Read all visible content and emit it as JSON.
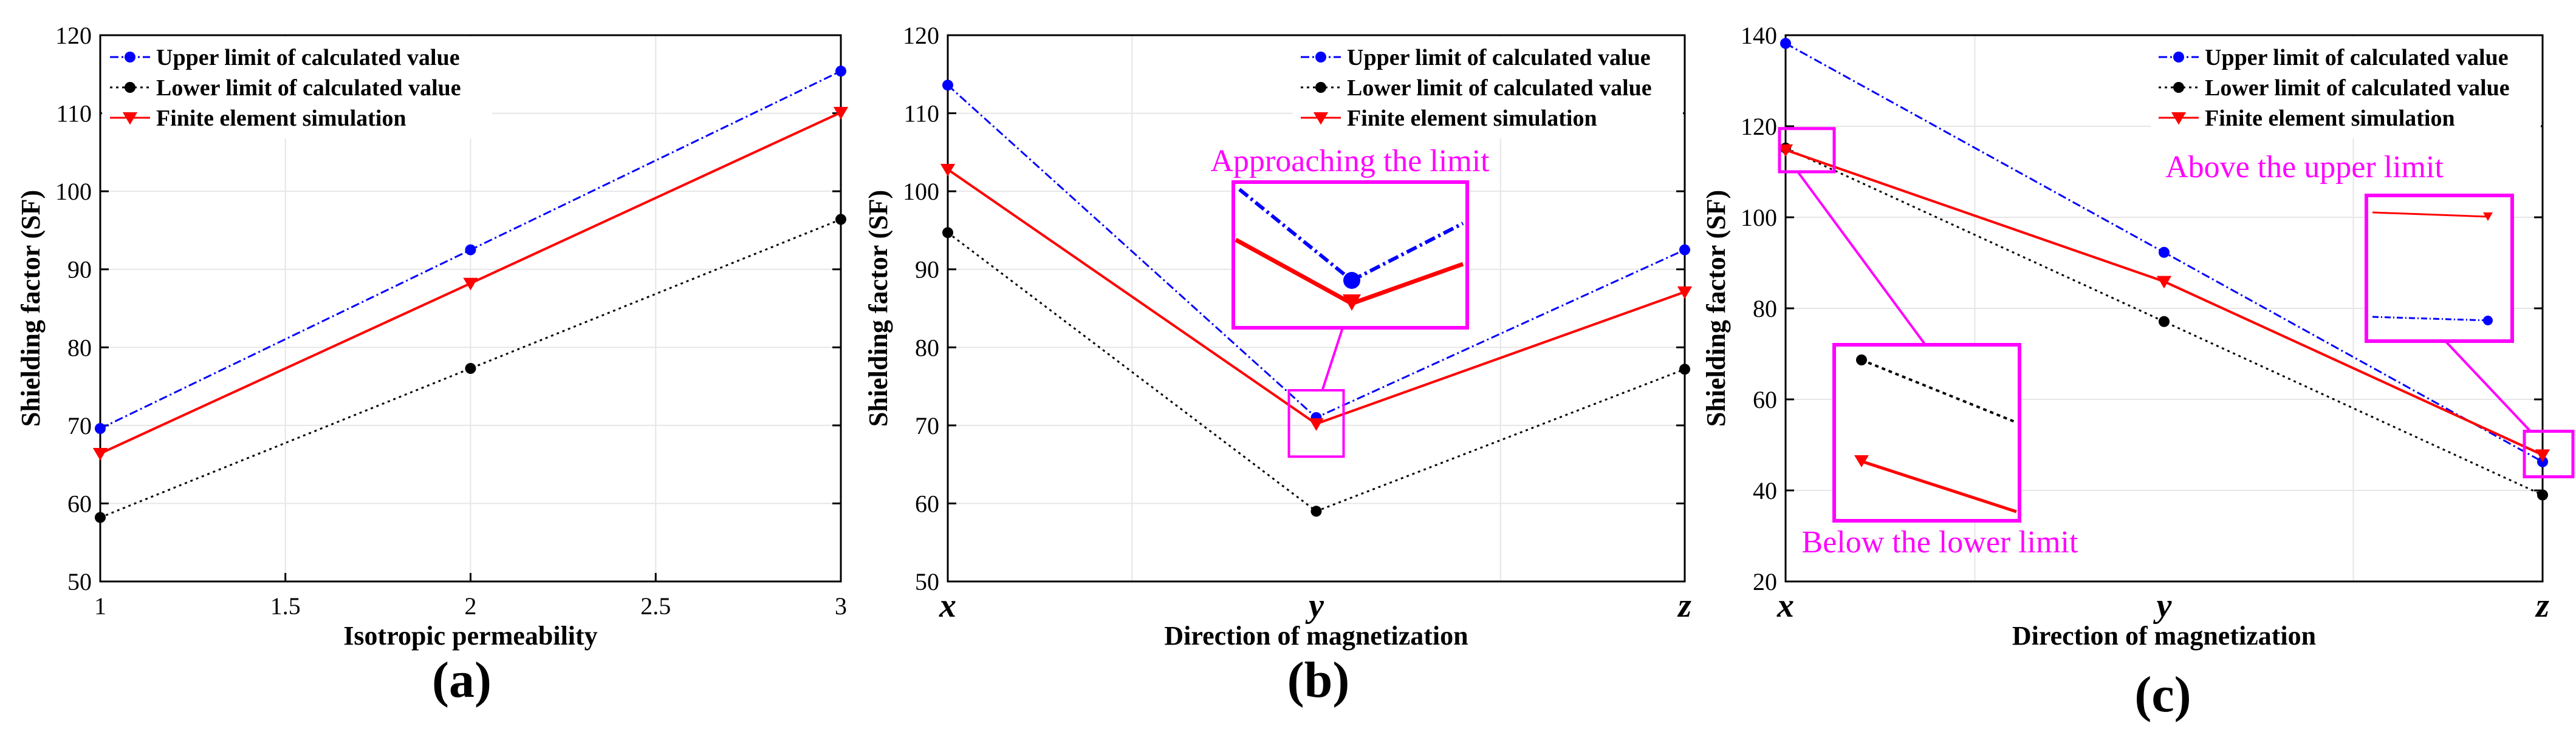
{
  "figure": {
    "panels": [
      "(a)",
      "(b)",
      "(c)"
    ]
  },
  "colors": {
    "upper": "#0000ff",
    "lower": "#000000",
    "fem": "#ff0000",
    "annotation": "#ff00ff",
    "grid": "#e6e6e6"
  },
  "chart_data": [
    {
      "type": "line",
      "panel": "(a)",
      "xlabel": "Isotropic permeability",
      "ylabel": "Shielding factor (SF)",
      "x": [
        1,
        2,
        3
      ],
      "xticks": [
        "1",
        "1.5",
        "2",
        "2.5",
        "3"
      ],
      "xlim": [
        1,
        3
      ],
      "ylim": [
        50,
        120
      ],
      "yticks": [
        50,
        60,
        70,
        80,
        90,
        100,
        110,
        120
      ],
      "grid": true,
      "legend_position": "top-left",
      "series": [
        {
          "name": "Upper limit of calculated value",
          "values": [
            69.6,
            92.5,
            115.4
          ]
        },
        {
          "name": "Lower limit of calculated value",
          "values": [
            58.2,
            77.3,
            96.4
          ]
        },
        {
          "name": "Finite element simulation",
          "values": [
            66.4,
            88.2,
            110.1
          ]
        }
      ]
    },
    {
      "type": "line",
      "panel": "(b)",
      "xlabel": "Direction of magnetization",
      "ylabel": "Shielding factor (SF)",
      "categories": [
        "x",
        "y",
        "z"
      ],
      "ylim": [
        50,
        120
      ],
      "yticks": [
        50,
        60,
        70,
        80,
        90,
        100,
        110,
        120
      ],
      "grid": true,
      "legend_position": "top-right",
      "series": [
        {
          "name": "Upper limit of calculated value",
          "values": [
            113.6,
            71.0,
            92.5
          ]
        },
        {
          "name": "Lower limit of calculated value",
          "values": [
            94.7,
            59.0,
            77.2
          ]
        },
        {
          "name": "Finite element simulation",
          "values": [
            102.8,
            70.2,
            87.1
          ]
        }
      ],
      "annotations": [
        "Approaching the limit"
      ]
    },
    {
      "type": "line",
      "panel": "(c)",
      "xlabel": "Direction of magnetization",
      "ylabel": "Shielding factor (SF)",
      "categories": [
        "x",
        "y",
        "z"
      ],
      "ylim": [
        20,
        140
      ],
      "yticks": [
        20,
        40,
        60,
        80,
        100,
        120,
        140
      ],
      "grid": true,
      "legend_position": "top-right",
      "series": [
        {
          "name": "Upper limit of calculated value",
          "values": [
            138.2,
            92.3,
            46.3
          ]
        },
        {
          "name": "Lower limit of calculated value",
          "values": [
            115.2,
            77.1,
            39.0
          ]
        },
        {
          "name": "Finite element simulation",
          "values": [
            114.8,
            85.9,
            47.8
          ]
        }
      ],
      "annotations": [
        "Above the upper limit",
        "Below the lower limit"
      ]
    }
  ]
}
